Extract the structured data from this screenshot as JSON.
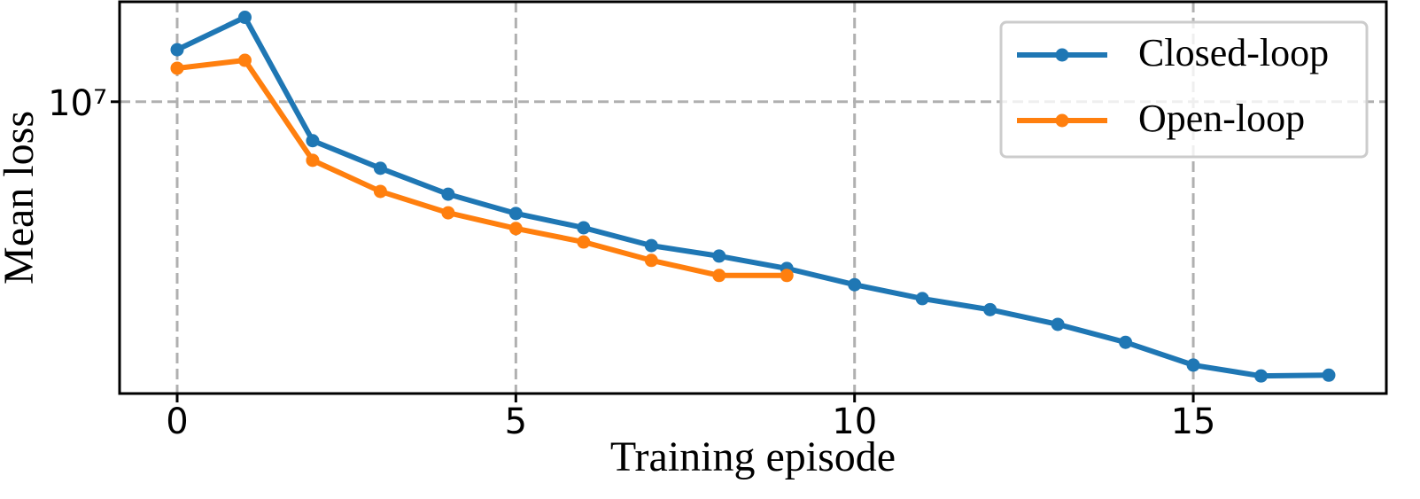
{
  "chart_data": {
    "type": "line",
    "xlabel": "Training episode",
    "ylabel": "Mean loss",
    "x": [
      0,
      1,
      2,
      3,
      4,
      5,
      6,
      7,
      8,
      9,
      10,
      11,
      12,
      13,
      14,
      15,
      16,
      17
    ],
    "series": [
      {
        "name": "Closed-loop",
        "color": "#1f77b4",
        "values": [
          13100000,
          15500000,
          8170000,
          7080000,
          6190000,
          5600000,
          5200000,
          4740000,
          4490000,
          4210000,
          3870000,
          3600000,
          3400000,
          3150000,
          2870000,
          2550000,
          2410000,
          2420000
        ]
      },
      {
        "name": "Open-loop",
        "color": "#ff7f0e",
        "values": [
          11900000,
          12400000,
          7380000,
          6280000,
          5620000,
          5180000,
          4830000,
          4390000,
          4060000,
          4060000,
          null,
          null,
          null,
          null,
          null,
          null,
          null,
          null
        ]
      }
    ],
    "xlim": [
      -0.85,
      17.85
    ],
    "xticks": [
      0,
      5,
      10,
      15
    ],
    "ylim": [
      2200000,
      16800000
    ],
    "yticks": [
      {
        "value": 10000000,
        "label": "10⁷"
      }
    ],
    "log_y": true,
    "grid": true,
    "legend": "upper right"
  }
}
